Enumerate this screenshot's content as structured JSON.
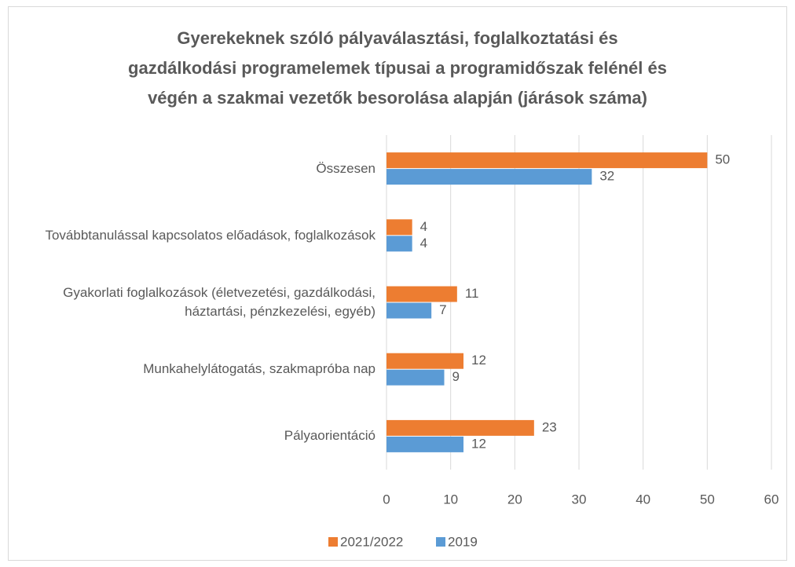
{
  "chart_data": {
    "type": "bar",
    "orientation": "horizontal",
    "title": [
      "Gyerekeknek szóló pályaválasztási, foglalkoztatási és",
      "gazdálkodási programelemek típusai a programidőszak felénél és",
      "végén a szakmai vezetők besorolása alapján (járások száma)"
    ],
    "categories": [
      "Összesen",
      "Továbbtanulással kapcsolatos előadások, foglalkozások",
      "Gyakorlati foglalkozások (életvezetési, gazdálkodási, háztartási, pénzkezelési, egyéb)",
      "Munkahelylátogatás, szakmapróba nap",
      "Pályaorientáció"
    ],
    "series": [
      {
        "name": "2021/2022",
        "color": "#ed7d31",
        "values": [
          50,
          4,
          11,
          12,
          23
        ]
      },
      {
        "name": "2019",
        "color": "#5b9bd5",
        "values": [
          32,
          4,
          7,
          9,
          12
        ]
      }
    ],
    "xlim": [
      0,
      60
    ],
    "xticks": [
      0,
      10,
      20,
      30,
      40,
      50,
      60
    ],
    "grid": true,
    "legend": "bottom"
  }
}
